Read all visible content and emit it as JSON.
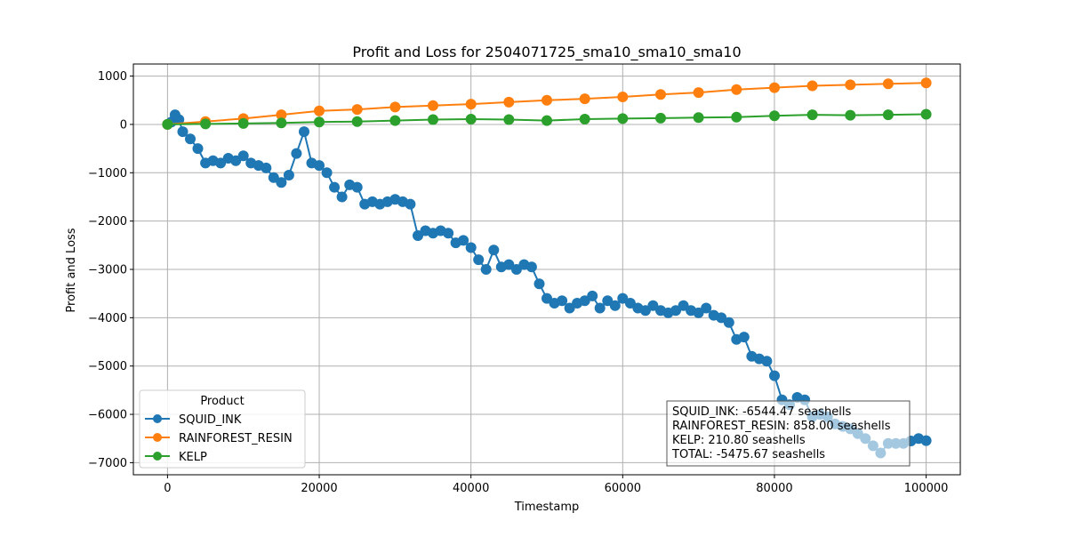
{
  "chart_data": {
    "type": "line",
    "title": "Profit and Loss for 2504071725_sma10_sma10_sma10",
    "xlabel": "Timestamp",
    "ylabel": "Profit and Loss",
    "xlim": [
      -4500,
      104500
    ],
    "ylim": [
      -7250,
      1250
    ],
    "x_ticks": [
      0,
      20000,
      40000,
      60000,
      80000,
      100000
    ],
    "x_tick_labels": [
      "0",
      "20000",
      "40000",
      "60000",
      "80000",
      "100000"
    ],
    "y_ticks": [
      1000,
      0,
      -1000,
      -2000,
      -3000,
      -4000,
      -5000,
      -6000,
      -7000
    ],
    "y_tick_labels": [
      "1000",
      "0",
      "−1000",
      "−2000",
      "−3000",
      "−4000",
      "−5000",
      "−6000",
      "−7000"
    ],
    "grid": true,
    "legend": {
      "title": "Product",
      "position": "lower-left",
      "entries": [
        "SQUID_INK",
        "RAINFOREST_RESIN",
        "KELP"
      ]
    },
    "series": [
      {
        "name": "SQUID_INK",
        "color": "#1f77b4",
        "marker": "circle",
        "points": [
          [
            0,
            0
          ],
          [
            500,
            50
          ],
          [
            1000,
            200
          ],
          [
            1500,
            100
          ],
          [
            2000,
            -150
          ],
          [
            3000,
            -300
          ],
          [
            4000,
            -500
          ],
          [
            5000,
            -800
          ],
          [
            6000,
            -750
          ],
          [
            7000,
            -800
          ],
          [
            8000,
            -700
          ],
          [
            9000,
            -750
          ],
          [
            10000,
            -650
          ],
          [
            11000,
            -800
          ],
          [
            12000,
            -850
          ],
          [
            13000,
            -900
          ],
          [
            14000,
            -1100
          ],
          [
            15000,
            -1200
          ],
          [
            16000,
            -1050
          ],
          [
            17000,
            -600
          ],
          [
            18000,
            -150
          ],
          [
            19000,
            -800
          ],
          [
            20000,
            -850
          ],
          [
            21000,
            -1000
          ],
          [
            22000,
            -1300
          ],
          [
            23000,
            -1500
          ],
          [
            24000,
            -1250
          ],
          [
            25000,
            -1300
          ],
          [
            26000,
            -1650
          ],
          [
            27000,
            -1600
          ],
          [
            28000,
            -1650
          ],
          [
            29000,
            -1600
          ],
          [
            30000,
            -1550
          ],
          [
            31000,
            -1600
          ],
          [
            32000,
            -1650
          ],
          [
            33000,
            -2300
          ],
          [
            34000,
            -2200
          ],
          [
            35000,
            -2250
          ],
          [
            36000,
            -2200
          ],
          [
            37000,
            -2250
          ],
          [
            38000,
            -2450
          ],
          [
            39000,
            -2400
          ],
          [
            40000,
            -2550
          ],
          [
            41000,
            -2800
          ],
          [
            42000,
            -3000
          ],
          [
            43000,
            -2600
          ],
          [
            44000,
            -2950
          ],
          [
            45000,
            -2900
          ],
          [
            46000,
            -3000
          ],
          [
            47000,
            -2900
          ],
          [
            48000,
            -2950
          ],
          [
            49000,
            -3300
          ],
          [
            50000,
            -3600
          ],
          [
            51000,
            -3700
          ],
          [
            52000,
            -3650
          ],
          [
            53000,
            -3800
          ],
          [
            54000,
            -3700
          ],
          [
            55000,
            -3650
          ],
          [
            56000,
            -3550
          ],
          [
            57000,
            -3800
          ],
          [
            58000,
            -3650
          ],
          [
            59000,
            -3750
          ],
          [
            60000,
            -3600
          ],
          [
            61000,
            -3700
          ],
          [
            62000,
            -3800
          ],
          [
            63000,
            -3850
          ],
          [
            64000,
            -3750
          ],
          [
            65000,
            -3850
          ],
          [
            66000,
            -3900
          ],
          [
            67000,
            -3850
          ],
          [
            68000,
            -3750
          ],
          [
            69000,
            -3850
          ],
          [
            70000,
            -3900
          ],
          [
            71000,
            -3800
          ],
          [
            72000,
            -3950
          ],
          [
            73000,
            -4000
          ],
          [
            74000,
            -4100
          ],
          [
            75000,
            -4450
          ],
          [
            76000,
            -4400
          ],
          [
            77000,
            -4800
          ],
          [
            78000,
            -4850
          ],
          [
            79000,
            -4900
          ],
          [
            80000,
            -5200
          ],
          [
            81000,
            -5700
          ],
          [
            82000,
            -5800
          ],
          [
            83000,
            -5650
          ],
          [
            84000,
            -5700
          ],
          [
            85000,
            -6050
          ],
          [
            86000,
            -6000
          ],
          [
            87000,
            -6050
          ],
          [
            88000,
            -6200
          ],
          [
            89000,
            -6250
          ],
          [
            90000,
            -6300
          ],
          [
            91000,
            -6400
          ],
          [
            92000,
            -6500
          ],
          [
            93000,
            -6650
          ],
          [
            94000,
            -6800
          ],
          [
            95000,
            -6600
          ],
          [
            96000,
            -6600
          ],
          [
            97000,
            -6600
          ],
          [
            98000,
            -6550
          ],
          [
            99000,
            -6500
          ],
          [
            100000,
            -6544
          ]
        ]
      },
      {
        "name": "RAINFOREST_RESIN",
        "color": "#ff7f0e",
        "marker": "circle",
        "points": [
          [
            0,
            0
          ],
          [
            5000,
            60
          ],
          [
            10000,
            120
          ],
          [
            15000,
            200
          ],
          [
            20000,
            280
          ],
          [
            25000,
            310
          ],
          [
            30000,
            360
          ],
          [
            35000,
            390
          ],
          [
            40000,
            420
          ],
          [
            45000,
            460
          ],
          [
            50000,
            500
          ],
          [
            55000,
            530
          ],
          [
            60000,
            570
          ],
          [
            65000,
            620
          ],
          [
            70000,
            660
          ],
          [
            75000,
            720
          ],
          [
            80000,
            760
          ],
          [
            85000,
            800
          ],
          [
            90000,
            820
          ],
          [
            95000,
            840
          ],
          [
            100000,
            858
          ]
        ]
      },
      {
        "name": "KELP",
        "color": "#2ca02c",
        "marker": "circle",
        "points": [
          [
            0,
            0
          ],
          [
            5000,
            10
          ],
          [
            10000,
            20
          ],
          [
            15000,
            30
          ],
          [
            20000,
            50
          ],
          [
            25000,
            60
          ],
          [
            30000,
            80
          ],
          [
            35000,
            100
          ],
          [
            40000,
            110
          ],
          [
            45000,
            100
          ],
          [
            50000,
            80
          ],
          [
            55000,
            110
          ],
          [
            60000,
            120
          ],
          [
            65000,
            130
          ],
          [
            70000,
            140
          ],
          [
            75000,
            150
          ],
          [
            80000,
            180
          ],
          [
            85000,
            200
          ],
          [
            90000,
            190
          ],
          [
            95000,
            200
          ],
          [
            100000,
            210.8
          ]
        ]
      }
    ],
    "annotation_box": {
      "lines": [
        "SQUID_INK: -6544.47 seashells",
        "RAINFOREST_RESIN: 858.00 seashells",
        "KELP: 210.80 seashells",
        "TOTAL: -5475.67 seashells"
      ]
    }
  }
}
